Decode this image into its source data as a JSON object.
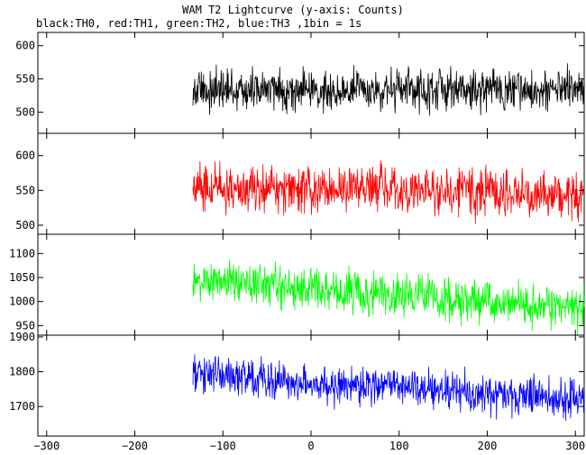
{
  "title": "WAM T2 Lightcurve (y-axis: Counts)",
  "subtitle": "black:TH0, red:TH1, green:TH2, blue:TH3 ,1bin = 1s",
  "chart_data": [
    {
      "type": "line",
      "name": "TH0",
      "color": "#000000",
      "x_range": [
        -134,
        310
      ],
      "xlim": [
        -310,
        310
      ],
      "ylim": [
        468,
        620
      ],
      "yticks": [
        "500",
        "550",
        "600"
      ],
      "ytick_values": [
        500,
        550,
        600
      ],
      "mean": 533,
      "noise": 22,
      "trend": 0
    },
    {
      "type": "line",
      "name": "TH1",
      "color": "#ff0000",
      "x_range": [
        -134,
        310
      ],
      "xlim": [
        -310,
        310
      ],
      "ylim": [
        487,
        632
      ],
      "yticks": [
        "500",
        "550",
        "600"
      ],
      "ytick_values": [
        500,
        550,
        600
      ],
      "mean": 555,
      "noise": 24,
      "trend": -12
    },
    {
      "type": "line",
      "name": "TH2",
      "color": "#00ff00",
      "x_range": [
        -134,
        310
      ],
      "xlim": [
        -310,
        310
      ],
      "ylim": [
        930,
        1140
      ],
      "yticks": [
        "950",
        "1000",
        "1050",
        "1100"
      ],
      "ytick_values": [
        950,
        1000,
        1050,
        1100
      ],
      "mean": 1045,
      "noise": 30,
      "trend": -60
    },
    {
      "type": "line",
      "name": "TH3",
      "color": "#0000ff",
      "x_range": [
        -134,
        310
      ],
      "xlim": [
        -310,
        310
      ],
      "ylim": [
        1615,
        1905
      ],
      "yticks": [
        "1700",
        "1800",
        "1900"
      ],
      "ytick_values": [
        1700,
        1800,
        1900
      ],
      "mean": 1790,
      "noise": 38,
      "trend": -70
    }
  ],
  "xaxis": {
    "ticks": [
      "−300",
      "−200",
      "−100",
      "0",
      "100",
      "200",
      "300"
    ],
    "tick_values": [
      -300,
      -200,
      -100,
      0,
      100,
      200,
      300
    ]
  }
}
